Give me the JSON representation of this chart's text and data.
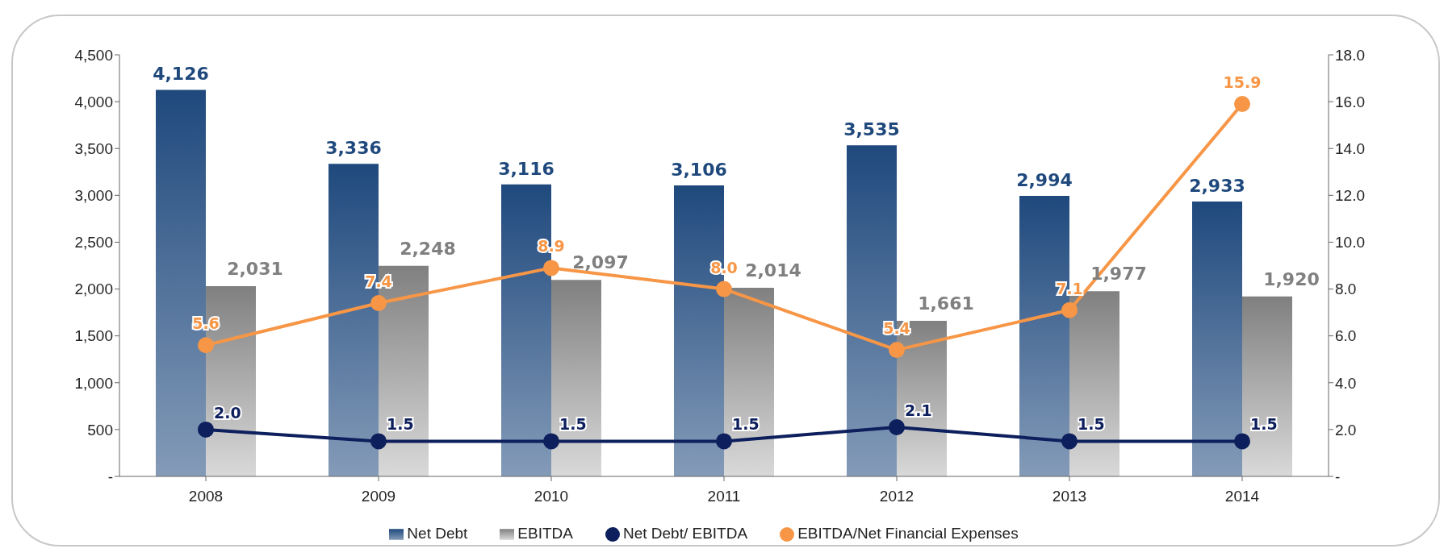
{
  "chart_data": {
    "type": "bar",
    "categories": [
      "2008",
      "2009",
      "2010",
      "2011",
      "2012",
      "2013",
      "2014"
    ],
    "series": [
      {
        "name": "Net Debt",
        "color": "#1f497d",
        "values": [
          4126,
          3336,
          3116,
          3106,
          3535,
          2994,
          2933
        ],
        "value_labels": [
          "4,126",
          "3,336",
          "3,116",
          "3,106",
          "3,535",
          "2,994",
          "2,933"
        ]
      },
      {
        "name": "EBITDA",
        "color": "#808080",
        "values": [
          2031,
          2248,
          2097,
          2014,
          1661,
          1977,
          1920
        ],
        "value_labels": [
          "2,031",
          "2,248",
          "2,097",
          "2,014",
          "1,661",
          "1,977",
          "1,920"
        ]
      },
      {
        "name": "Net Debt/ EBITDA",
        "type": "line",
        "axis": "y2",
        "color": "#0d1f5c",
        "values": [
          2.0,
          1.5,
          1.5,
          1.5,
          2.1,
          1.5,
          1.5
        ],
        "value_labels": [
          "2.0",
          "1.5",
          "1.5",
          "1.5",
          "2.1",
          "1.5",
          "1.5"
        ]
      },
      {
        "name": "EBITDA/Net Financial Expenses",
        "type": "line",
        "axis": "y2",
        "color": "#f79646",
        "values": [
          5.6,
          7.4,
          8.9,
          8.0,
          5.4,
          7.1,
          15.9
        ],
        "value_labels": [
          "5.6",
          "7.4",
          "8.9",
          "8.0",
          "5.4",
          "7.1",
          "15.9"
        ]
      }
    ],
    "ylim": [
      0,
      4500
    ],
    "yticks": [
      {
        "value": 0,
        "label": "-"
      },
      {
        "value": 500,
        "label": "500"
      },
      {
        "value": 1000,
        "label": "1,000"
      },
      {
        "value": 1500,
        "label": "1,500"
      },
      {
        "value": 2000,
        "label": "2,000"
      },
      {
        "value": 2500,
        "label": "2,500"
      },
      {
        "value": 3000,
        "label": "3,000"
      },
      {
        "value": 3500,
        "label": "3,500"
      },
      {
        "value": 4000,
        "label": "4,000"
      },
      {
        "value": 4500,
        "label": "4,500"
      }
    ],
    "y2lim": [
      0,
      18
    ],
    "y2ticks": [
      {
        "value": 0,
        "label": "-"
      },
      {
        "value": 2,
        "label": "2.0"
      },
      {
        "value": 4,
        "label": "4.0"
      },
      {
        "value": 6,
        "label": "6.0"
      },
      {
        "value": 8,
        "label": "8.0"
      },
      {
        "value": 10,
        "label": "10.0"
      },
      {
        "value": 12,
        "label": "12.0"
      },
      {
        "value": 14,
        "label": "14.0"
      },
      {
        "value": 16,
        "label": "16.0"
      },
      {
        "value": 18,
        "label": "18.0"
      }
    ],
    "marker": "circle",
    "line_style": "solid",
    "grid": false,
    "legend": "bottom"
  }
}
